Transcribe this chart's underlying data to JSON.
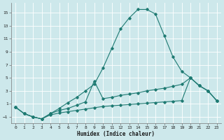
{
  "background_color": "#cde8eb",
  "grid_color": "#b8d8dc",
  "line_color": "#1e7a72",
  "xlabel": "Humidex (Indice chaleur)",
  "xlim": [
    -0.5,
    23.5
  ],
  "ylim": [
    -2.0,
    16.5
  ],
  "xticks": [
    0,
    1,
    2,
    3,
    4,
    5,
    6,
    7,
    8,
    9,
    10,
    11,
    12,
    13,
    14,
    15,
    16,
    17,
    18,
    19,
    20,
    21,
    22,
    23
  ],
  "yticks": [
    -1,
    1,
    3,
    5,
    7,
    9,
    11,
    13,
    15
  ],
  "line_main_x": [
    0,
    1,
    2,
    3,
    4,
    5,
    6,
    7,
    8,
    9,
    10,
    11,
    12,
    13,
    14,
    15,
    16,
    17,
    18,
    19,
    20,
    21,
    22,
    23
  ],
  "line_main_y": [
    0.5,
    -0.5,
    -1.0,
    -1.3,
    -0.5,
    0.3,
    1.2,
    2.0,
    3.0,
    4.0,
    6.5,
    9.5,
    12.5,
    14.2,
    15.5,
    15.5,
    14.8,
    11.5,
    8.2,
    6.0,
    5.0,
    3.8,
    3.0,
    1.5
  ],
  "line_mid_x": [
    0,
    1,
    2,
    3,
    4,
    5,
    6,
    7,
    8,
    9,
    10,
    11,
    12,
    13,
    14,
    15,
    16,
    17,
    18,
    19,
    20,
    21,
    22,
    23
  ],
  "line_mid_y": [
    0.5,
    -0.5,
    -1.0,
    -1.3,
    -0.5,
    0.0,
    0.3,
    0.8,
    1.3,
    4.5,
    1.8,
    2.0,
    2.3,
    2.5,
    2.7,
    3.0,
    3.2,
    3.4,
    3.7,
    4.0,
    5.0,
    3.8,
    3.0,
    1.5
  ],
  "line_flat_x": [
    0,
    1,
    2,
    3,
    4,
    5,
    6,
    7,
    8,
    9,
    10,
    11,
    12,
    13,
    14,
    15,
    16,
    17,
    18,
    19,
    20,
    21,
    22,
    23
  ],
  "line_flat_y": [
    0.5,
    -0.5,
    -1.0,
    -1.3,
    -0.7,
    -0.4,
    -0.2,
    0.0,
    0.2,
    0.4,
    0.6,
    0.7,
    0.8,
    0.9,
    1.0,
    1.1,
    1.2,
    1.3,
    1.4,
    1.5,
    5.0,
    3.8,
    3.0,
    1.5
  ]
}
